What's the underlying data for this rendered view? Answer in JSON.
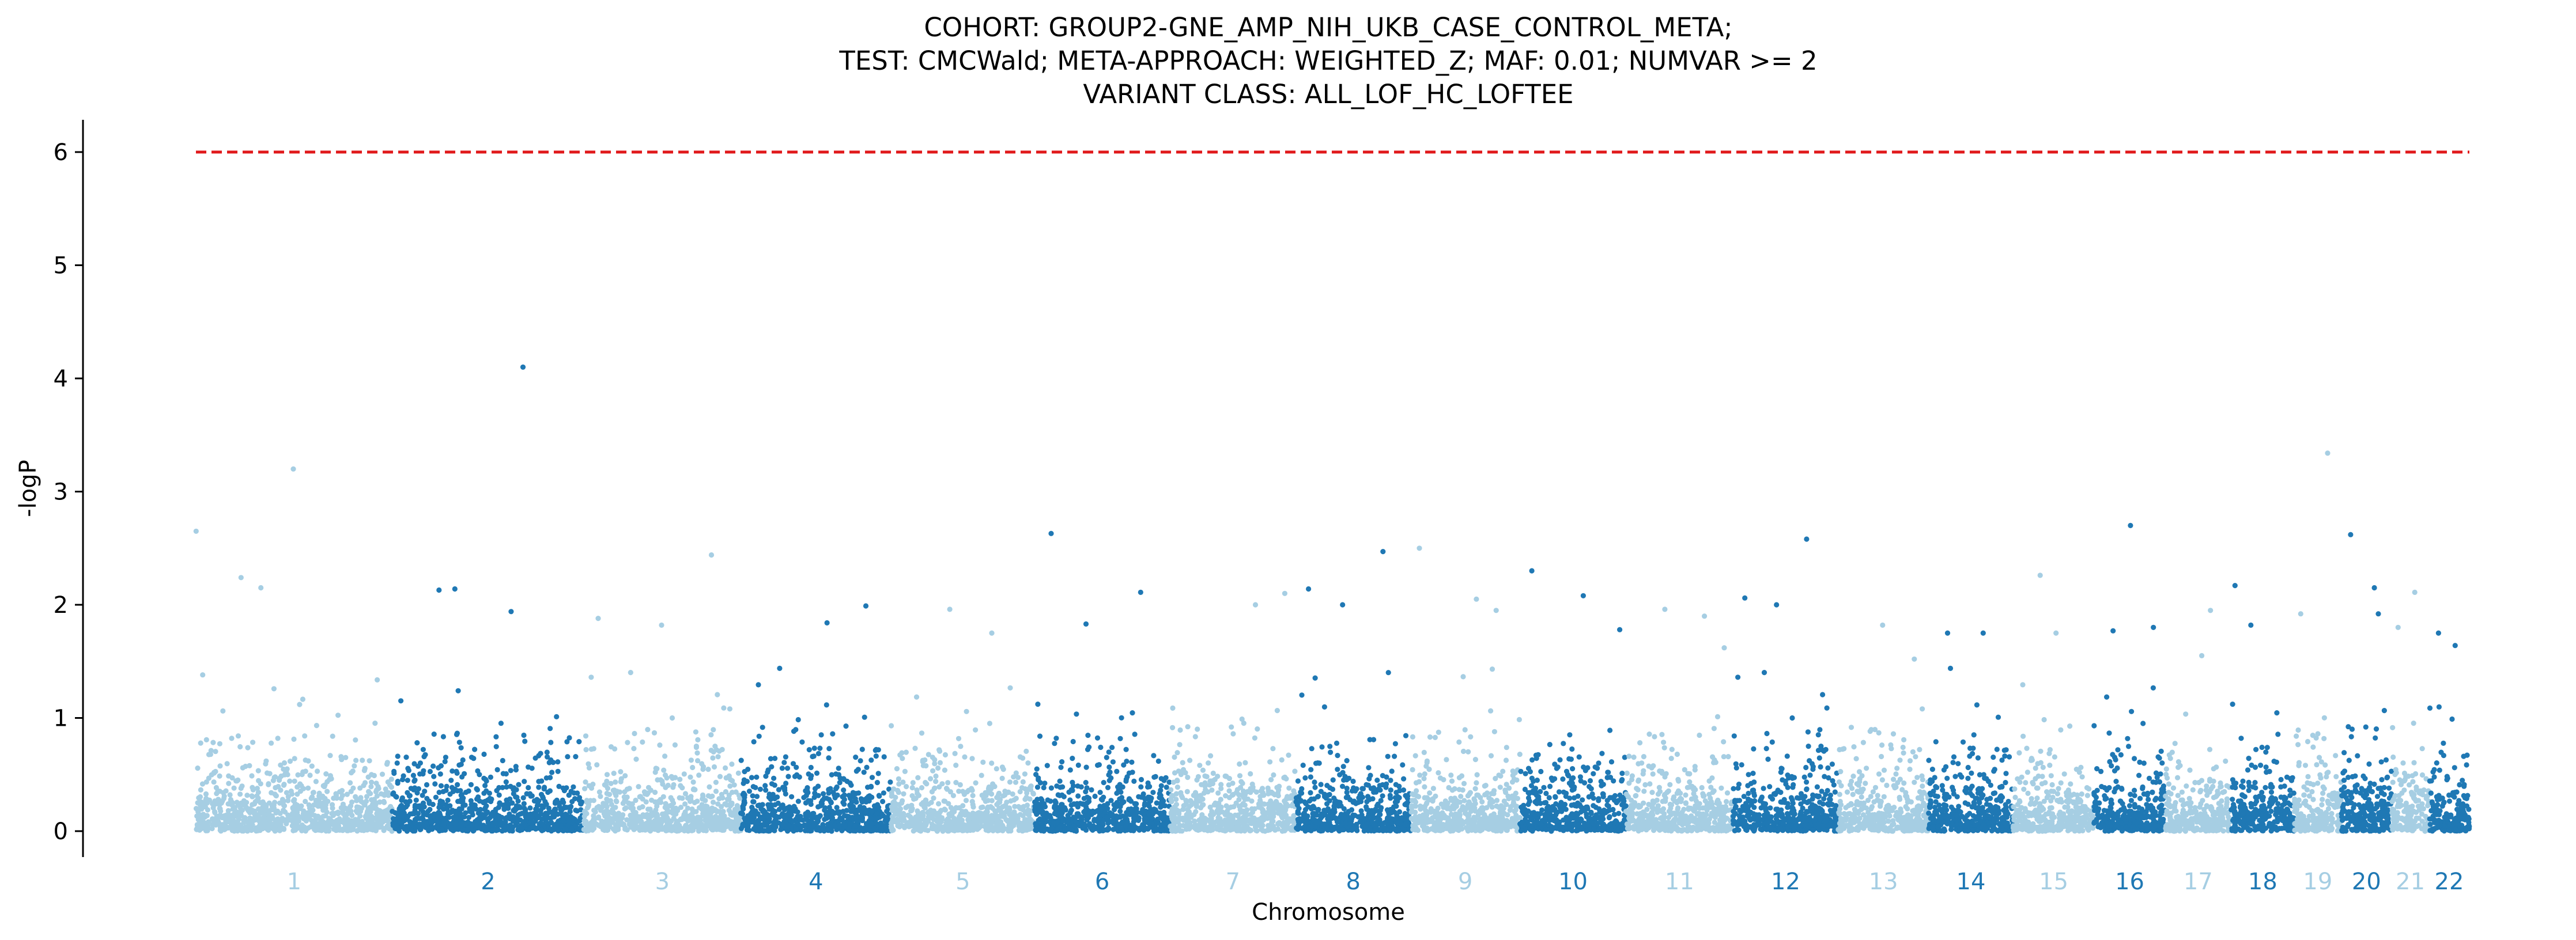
{
  "chart_data": {
    "type": "scatter",
    "title": [
      "COHORT: GROUP2-GNE_AMP_NIH_UKB_CASE_CONTROL_META;",
      "TEST: CMCWald; META-APPROACH: WEIGHTED_Z; MAF: 0.01; NUMVAR >= 2",
      "VARIANT CLASS: ALL_LOF_HC_LOFTEE"
    ],
    "xlabel": "Chromosome",
    "ylabel": "-logP",
    "ylim": [
      -0.28,
      6.28
    ],
    "yticks": [
      0,
      1,
      2,
      3,
      4,
      5,
      6
    ],
    "grid": false,
    "legend": "none",
    "threshold": {
      "value": 6.0,
      "color": "#e0191b",
      "style": "dashed"
    },
    "colors": {
      "odd": "#a6cee3",
      "even": "#1f78b4"
    },
    "chromosomes": [
      {
        "label": "1",
        "span": [
          0,
          248
        ],
        "top": [
          [
            0.2,
            2.65
          ],
          [
            57,
            2.24
          ],
          [
            82,
            2.15
          ],
          [
            123,
            3.2
          ]
        ]
      },
      {
        "label": "2",
        "span": [
          248,
          490
        ],
        "top": [
          [
            59,
            2.13
          ],
          [
            79,
            2.14
          ],
          [
            150,
            1.94
          ],
          [
            165,
            4.1
          ]
        ]
      },
      {
        "label": "3",
        "span": [
          490,
          688
        ],
        "top": [
          [
            18,
            1.88
          ],
          [
            98,
            1.82
          ],
          [
            161,
            2.44
          ]
        ]
      },
      {
        "label": "4",
        "span": [
          688,
          878
        ],
        "top": [
          [
            109,
            1.84
          ],
          [
            158,
            1.99
          ]
        ]
      },
      {
        "label": "5",
        "span": [
          878,
          1059
        ],
        "top": [
          [
            74,
            1.96
          ],
          [
            127,
            1.75
          ]
        ]
      },
      {
        "label": "6",
        "span": [
          1059,
          1230
        ],
        "top": [
          [
            21,
            2.63
          ],
          [
            65,
            1.83
          ],
          [
            134,
            2.11
          ]
        ]
      },
      {
        "label": "7",
        "span": [
          1230,
          1389
        ],
        "top": [
          [
            108,
            2.0
          ],
          [
            145,
            2.1
          ]
        ]
      },
      {
        "label": "8",
        "span": [
          1389,
          1534
        ],
        "top": [
          [
            16,
            2.14
          ],
          [
            59,
            2.0
          ],
          [
            110,
            2.47
          ]
        ]
      },
      {
        "label": "9",
        "span": [
          1534,
          1672
        ],
        "top": [
          [
            11,
            2.5
          ],
          [
            83,
            2.05
          ],
          [
            108,
            1.95
          ]
        ]
      },
      {
        "label": "10",
        "span": [
          1672,
          1806
        ],
        "top": [
          [
            15,
            2.3
          ],
          [
            80,
            2.08
          ],
          [
            126,
            1.78
          ]
        ]
      },
      {
        "label": "11",
        "span": [
          1806,
          1941
        ],
        "top": [
          [
            49,
            1.96
          ],
          [
            99,
            1.9
          ],
          [
            124,
            1.62
          ]
        ]
      },
      {
        "label": "12",
        "span": [
          1941,
          2074
        ],
        "top": [
          [
            15,
            2.06
          ],
          [
            55,
            2.0
          ],
          [
            93,
            2.58
          ]
        ]
      },
      {
        "label": "13",
        "span": [
          2074,
          2188
        ],
        "top": [
          [
            56,
            1.82
          ],
          [
            96,
            1.52
          ]
        ]
      },
      {
        "label": "14",
        "span": [
          2188,
          2295
        ],
        "top": [
          [
            24,
            1.75
          ],
          [
            69,
            1.75
          ]
        ]
      },
      {
        "label": "15",
        "span": [
          2295,
          2397
        ],
        "top": [
          [
            34,
            2.26
          ],
          [
            54,
            1.75
          ]
        ]
      },
      {
        "label": "16",
        "span": [
          2397,
          2487
        ],
        "top": [
          [
            46,
            2.7
          ],
          [
            75,
            1.8
          ],
          [
            24,
            1.77
          ]
        ]
      },
      {
        "label": "17",
        "span": [
          2487,
          2570
        ],
        "top": [
          [
            46,
            1.55
          ],
          [
            57,
            1.95
          ]
        ]
      },
      {
        "label": "18",
        "span": [
          2570,
          2650
        ],
        "top": [
          [
            5,
            2.17
          ],
          [
            25,
            1.82
          ]
        ]
      },
      {
        "label": "19",
        "span": [
          2650,
          2709
        ],
        "top": [
          [
            8,
            1.92
          ],
          [
            42,
            3.34
          ]
        ]
      },
      {
        "label": "20",
        "span": [
          2709,
          2773
        ],
        "top": [
          [
            12,
            2.62
          ],
          [
            42,
            2.15
          ],
          [
            47,
            1.92
          ]
        ]
      },
      {
        "label": "21",
        "span": [
          2773,
          2820
        ],
        "top": [
          [
            8,
            1.8
          ],
          [
            29,
            2.11
          ]
        ]
      },
      {
        "label": "22",
        "span": [
          2820,
          2871
        ],
        "top": [
          [
            12,
            1.75
          ],
          [
            33,
            1.64
          ]
        ]
      }
    ],
    "gene_bg": {
      "per_mb": 3.6,
      "max_regular": 1.45,
      "scale": 0.19
    }
  }
}
